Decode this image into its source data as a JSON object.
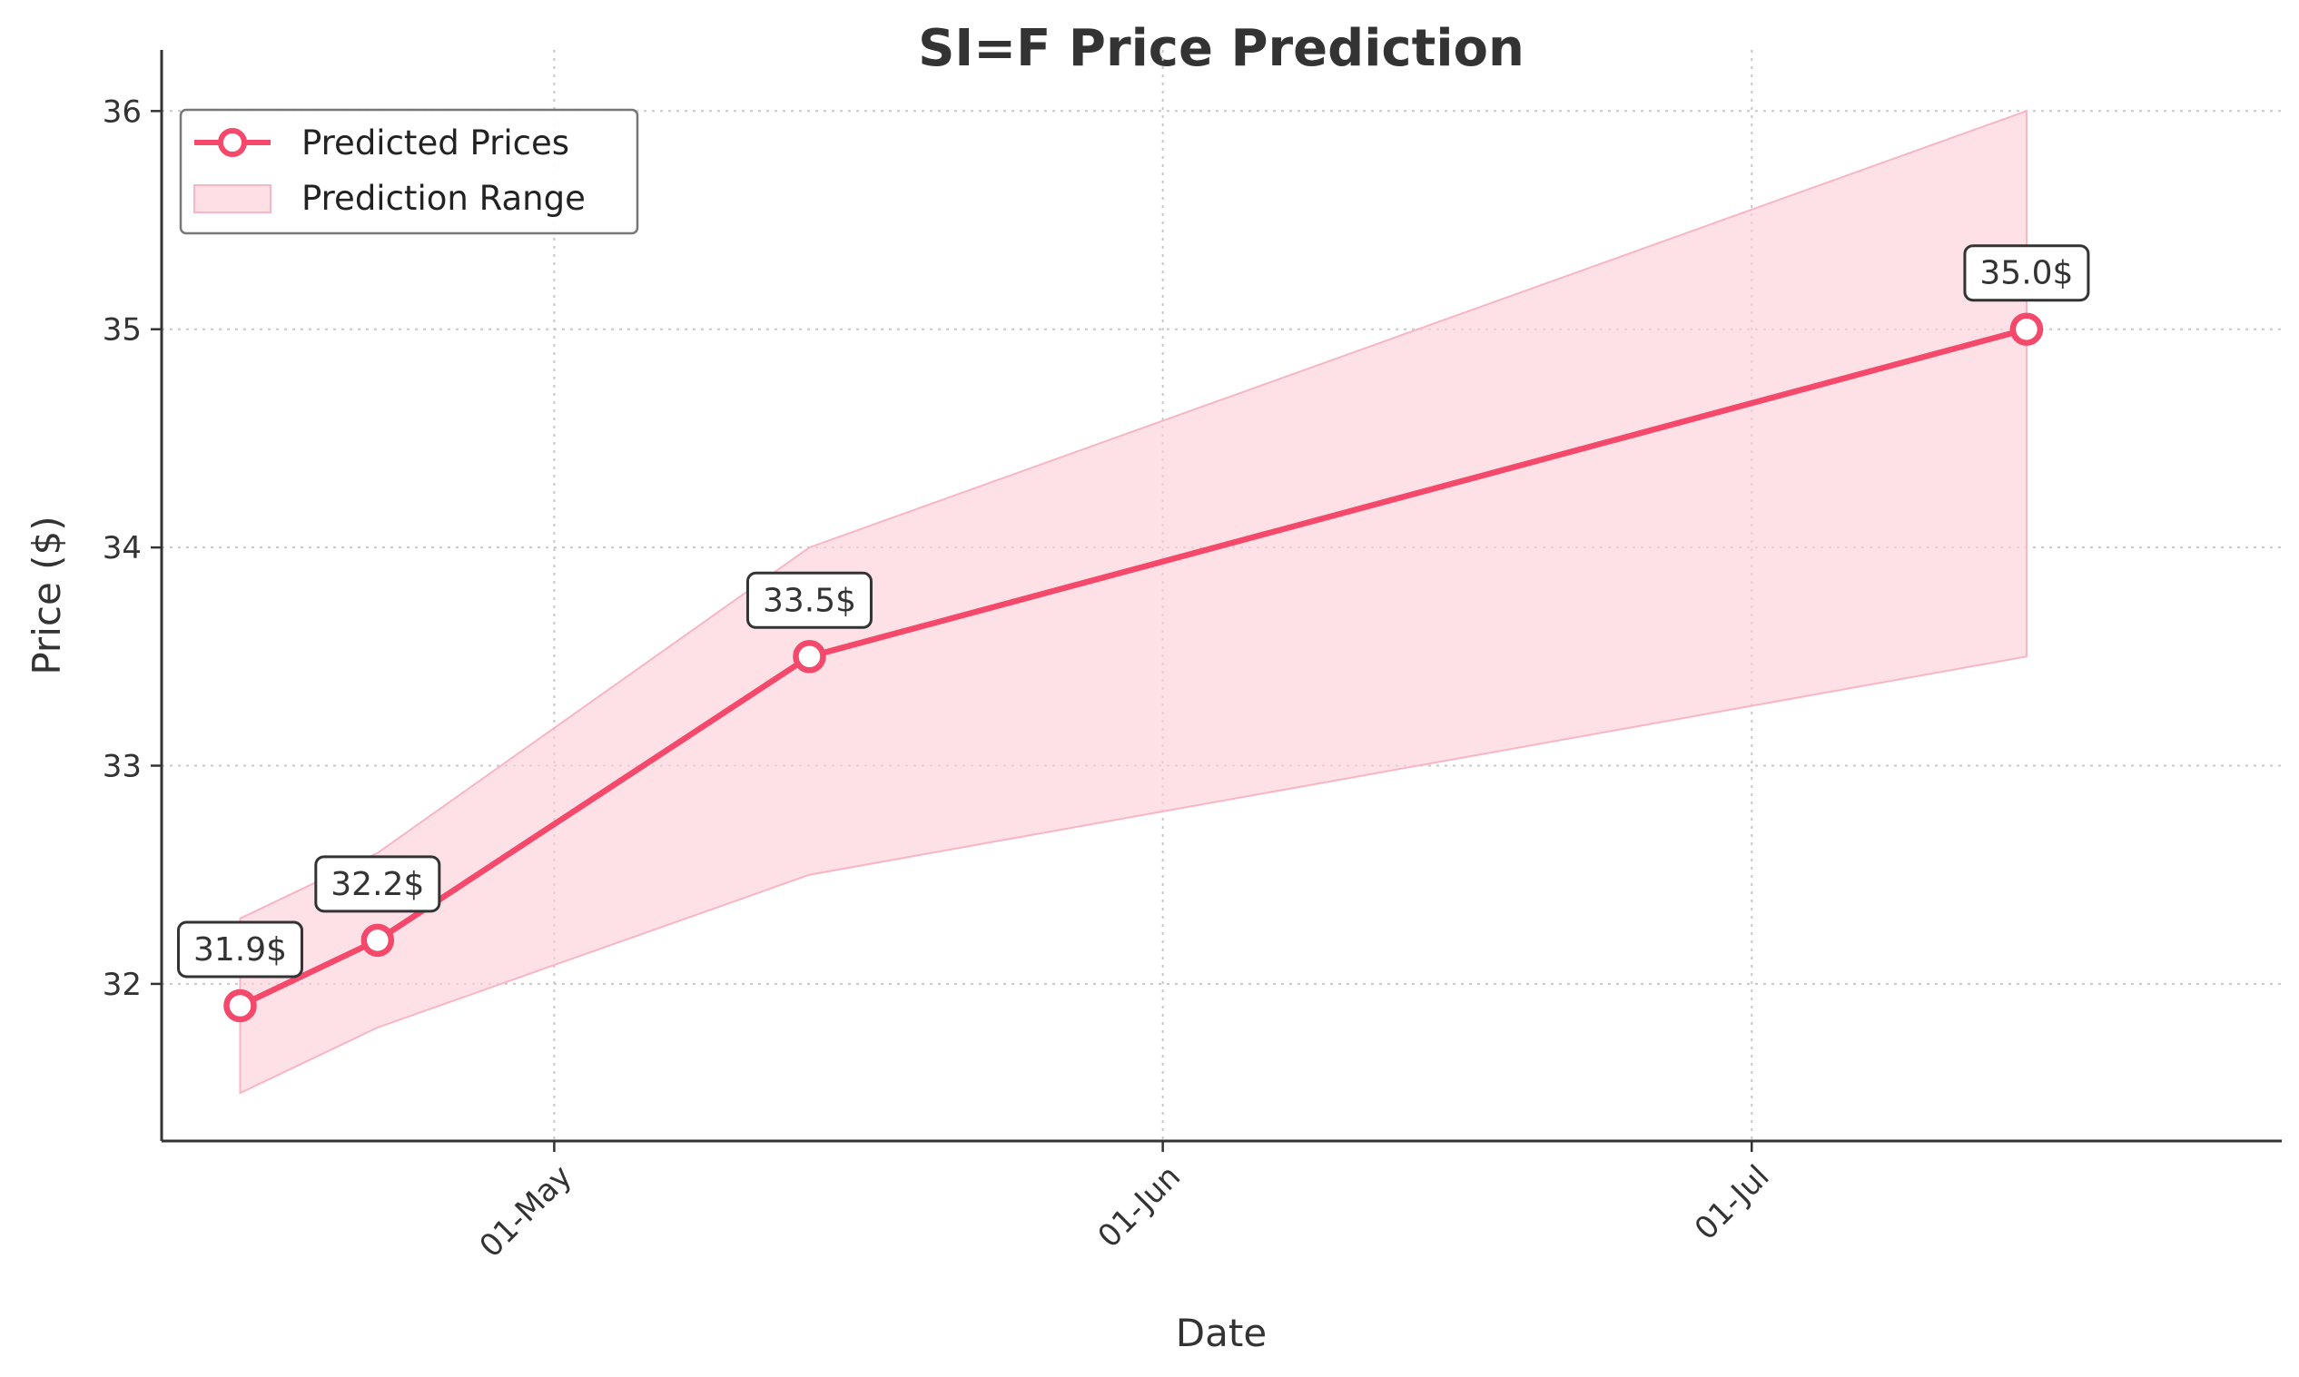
{
  "chart_data": {
    "type": "line",
    "title": "SI=F Price Prediction",
    "xlabel": "Date",
    "ylabel": "Price ($)",
    "x": [
      "2025-04-15",
      "2025-04-22",
      "2025-05-14",
      "2025-07-15"
    ],
    "series": [
      {
        "name": "Predicted Prices",
        "values": [
          31.9,
          32.2,
          33.5,
          35.0
        ],
        "labels": [
          "31.9$",
          "32.2$",
          "33.5$",
          "35.0$"
        ],
        "color": "#f4496a"
      }
    ],
    "range": {
      "name": "Prediction Range",
      "lower": [
        31.5,
        31.8,
        32.5,
        33.5
      ],
      "upper": [
        32.3,
        32.6,
        34.0,
        36.0
      ],
      "color": "#fcd1da"
    },
    "x_ticks": [
      {
        "date": "2025-05-01",
        "label": "01-May"
      },
      {
        "date": "2025-06-01",
        "label": "01-Jun"
      },
      {
        "date": "2025-07-01",
        "label": "01-Jul"
      }
    ],
    "y_ticks": [
      32,
      33,
      34,
      35,
      36
    ],
    "xlim": [
      "2025-04-11",
      "2025-07-28"
    ],
    "ylim": [
      31.28,
      36.28
    ],
    "grid": true,
    "legend_position": "top-left"
  }
}
